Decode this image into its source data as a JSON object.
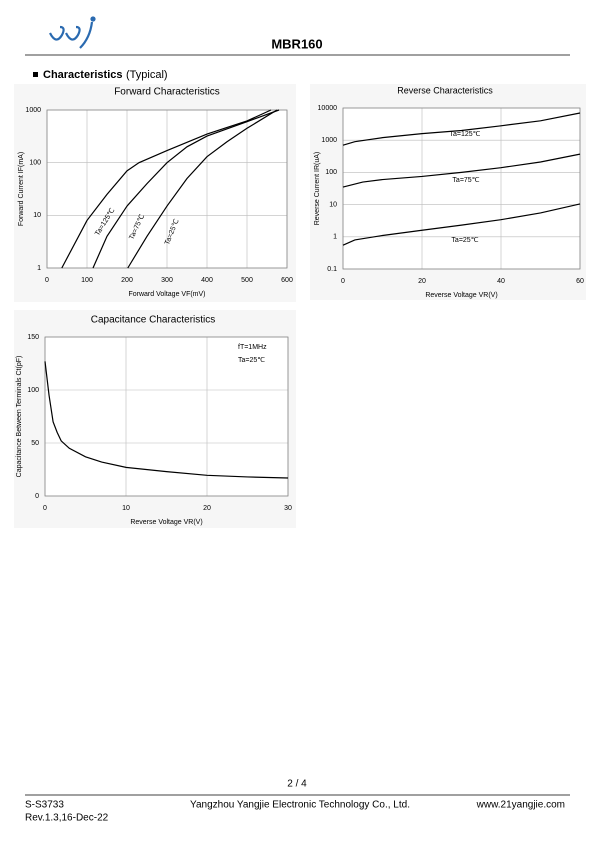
{
  "header": {
    "title": "MBR160",
    "section": "Characteristics",
    "section_note": "(Typical)"
  },
  "chart_data": [
    {
      "type": "line",
      "title": "Forward Characteristics",
      "x_label": "Forward Voltage  VF(mV)",
      "y_label": "Forward Current  IF(mA)",
      "log_y": true,
      "grid": true,
      "xlim": [
        0,
        600
      ],
      "xticks": [
        0,
        100,
        200,
        300,
        400,
        500,
        600
      ],
      "ylim": [
        1,
        1000
      ],
      "yticks": [
        1,
        10,
        100,
        1000
      ],
      "series": [
        {
          "name": "Ta=125℃",
          "color": "#000000",
          "x": [
            37,
            100,
            150,
            200,
            230,
            300,
            400,
            500,
            560
          ],
          "values": [
            1,
            8,
            25,
            70,
            100,
            170,
            350,
            620,
            1000
          ]
        },
        {
          "name": "Ta=75℃",
          "color": "#000000",
          "x": [
            115,
            150,
            200,
            250,
            300,
            350,
            400,
            500,
            580
          ],
          "values": [
            1,
            4,
            15,
            40,
            100,
            200,
            320,
            600,
            1000
          ]
        },
        {
          "name": "Ta=25℃",
          "color": "#000000",
          "x": [
            202,
            250,
            300,
            350,
            400,
            450,
            500,
            575
          ],
          "values": [
            1,
            4,
            15,
            50,
            130,
            250,
            450,
            1000
          ]
        }
      ]
    },
    {
      "type": "line",
      "title": "Reverse Characteristics",
      "x_label": "Reverse Voltage  VR(V)",
      "y_label": "Reverse Current  IR(uA)",
      "log_y": true,
      "grid": true,
      "xlim": [
        0,
        60
      ],
      "xticks": [
        0,
        20,
        40,
        60
      ],
      "ylim": [
        0.1,
        10000
      ],
      "yticks": [
        0.1,
        1,
        10,
        100,
        1000,
        10000
      ],
      "series": [
        {
          "name": "Ta=125℃",
          "color": "#000000",
          "x": [
            0,
            3,
            10,
            20,
            30,
            40,
            50,
            60
          ],
          "values": [
            700,
            900,
            1200,
            1600,
            2000,
            2800,
            4000,
            7000
          ]
        },
        {
          "name": "Ta=75℃",
          "color": "#000000",
          "x": [
            0,
            5,
            10,
            20,
            30,
            40,
            50,
            60
          ],
          "values": [
            35,
            50,
            60,
            75,
            100,
            140,
            210,
            370
          ]
        },
        {
          "name": "Ta=25℃",
          "color": "#000000",
          "x": [
            0,
            3,
            10,
            20,
            30,
            40,
            50,
            60
          ],
          "values": [
            0.55,
            0.8,
            1.1,
            1.6,
            2.3,
            3.4,
            5.5,
            10.5
          ]
        }
      ]
    },
    {
      "type": "line",
      "title": "Capacitance Characteristics",
      "x_label": "Reverse Voltage  VR(V)",
      "y_label": "Capacitance Between Terminals Ct(pF)",
      "log_y": false,
      "grid": true,
      "annotations": [
        "fT=1MHz",
        "Ta=25℃"
      ],
      "xlim": [
        0,
        30
      ],
      "xticks": [
        0,
        10,
        20,
        30
      ],
      "ylim": [
        0,
        150
      ],
      "yticks": [
        0,
        50,
        100,
        150
      ],
      "series": [
        {
          "color": "#000000",
          "x": [
            0,
            0.5,
            1,
            1.5,
            2,
            3,
            5,
            7,
            10,
            15,
            20,
            25,
            30
          ],
          "values": [
            127,
            95,
            70,
            60,
            52,
            45,
            37,
            32,
            27,
            23,
            19.5,
            18,
            17
          ]
        }
      ]
    }
  ],
  "footer": {
    "page": "2 / 4",
    "doc_no": "S-S3733",
    "revision": "Rev.1.3,16-Dec-22",
    "company": "Yangzhou Yangjie Electronic Technology Co., Ltd.",
    "website": "www.21yangjie.com"
  }
}
